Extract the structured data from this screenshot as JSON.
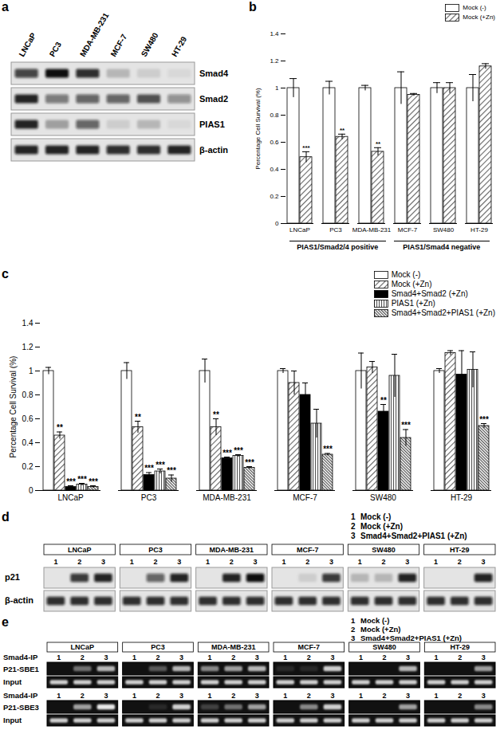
{
  "blot_a": {
    "panel": "a",
    "type": "western_blot",
    "lanes": [
      "LNCaP",
      "PC3",
      "MDA-MB-231",
      "MCF-7",
      "SW480",
      "HT-29"
    ],
    "rows": [
      {
        "label": "Smad4",
        "intensity": [
          0.75,
          1.0,
          0.85,
          0.2,
          0.1,
          0.05
        ]
      },
      {
        "label": "Smad2",
        "intensity": [
          0.9,
          0.5,
          0.6,
          0.6,
          0.7,
          0.4
        ]
      },
      {
        "label": "PIAS1",
        "intensity": [
          0.9,
          0.3,
          0.6,
          0.1,
          0.2,
          0.05
        ]
      },
      {
        "label": "β-actin",
        "intensity": [
          0.9,
          0.9,
          0.9,
          0.85,
          0.85,
          0.9
        ]
      }
    ]
  },
  "chart_data": [
    {
      "panel": "b",
      "type": "bar",
      "ylabel": "Percentage Cell Survival (%)",
      "categories": [
        "LNCaP",
        "PC3",
        "MDA-MB-231",
        "MCF-7",
        "SW480",
        "HT-29"
      ],
      "groups": [
        {
          "label": "PIAS1/Smad2/4 positive",
          "categories": [
            "LNCaP",
            "PC3",
            "MDA-MB-231"
          ]
        },
        {
          "label": "PIAS1/Smad4 negative",
          "categories": [
            "MCF-7",
            "SW480",
            "HT-29"
          ]
        }
      ],
      "ylim": [
        0,
        1.4
      ],
      "yticks": [
        0,
        0.2,
        0.4,
        0.6,
        0.8,
        1,
        1.2,
        1.4
      ],
      "grid": false,
      "legend": "top-right",
      "series": [
        {
          "name": "Mock (-)",
          "color": "#ffffff",
          "values": [
            1,
            1,
            1,
            1,
            1,
            1
          ],
          "errors": [
            0.07,
            0.05,
            0.02,
            0.12,
            0.04,
            0.1
          ],
          "significance": [
            null,
            null,
            null,
            null,
            null,
            null
          ]
        },
        {
          "name": "Mock (+Zn)",
          "color": "#555555",
          "values": [
            0.49,
            0.64,
            0.53,
            0.95,
            1.0,
            1.16
          ],
          "errors": [
            0.04,
            0.02,
            0.03,
            0.01,
            0.04,
            0.02
          ],
          "significance": [
            "***",
            "**",
            "**",
            null,
            null,
            null
          ]
        }
      ]
    },
    {
      "panel": "c",
      "type": "bar",
      "ylabel": "Percentage Cell Survival (%)",
      "categories": [
        "LNCaP",
        "PC3",
        "MDA-MB-231",
        "MCF-7",
        "SW480",
        "HT-29"
      ],
      "ylim": [
        0,
        1.4
      ],
      "yticks": [
        0,
        0.2,
        0.4,
        0.6,
        0.8,
        1,
        1.2,
        1.4
      ],
      "grid": false,
      "legend": "top-right",
      "series": [
        {
          "name": "Mock (-)",
          "color": "#ffffff",
          "values": [
            1,
            1,
            1,
            1,
            1,
            1
          ],
          "errors": [
            0.03,
            0.07,
            0.1,
            0.02,
            0.15,
            0.02
          ],
          "significance": [
            null,
            null,
            null,
            null,
            null,
            null
          ]
        },
        {
          "name": "Mock (+Zn)",
          "color": "#555555",
          "values": [
            0.46,
            0.53,
            0.53,
            0.9,
            1.03,
            1.15
          ],
          "errors": [
            0.03,
            0.05,
            0.07,
            0.1,
            0.05,
            0.02
          ],
          "significance": [
            "**",
            "**",
            "**",
            null,
            null,
            null
          ]
        },
        {
          "name": "Smad4+Smad2 (+Zn)",
          "color": "#000000",
          "values": [
            0.03,
            0.13,
            0.27,
            0.8,
            0.66,
            0.97
          ],
          "errors": [
            0.01,
            0.02,
            0.01,
            0.1,
            0.06,
            0.2
          ],
          "significance": [
            "***",
            "***",
            "***",
            null,
            "**",
            null
          ]
        },
        {
          "name": "PIAS1 (+Zn)",
          "color": "#444444",
          "values": [
            0.05,
            0.16,
            0.29,
            0.56,
            0.96,
            1.01
          ],
          "errors": [
            0.01,
            0.02,
            0.01,
            0.12,
            0.18,
            0.15
          ],
          "significance": [
            "***",
            "***",
            "***",
            null,
            null,
            null
          ]
        },
        {
          "name": "Smad4+Smad2+PIAS1 (+Zn)",
          "color": "#333333",
          "values": [
            0.03,
            0.1,
            0.19,
            0.3,
            0.44,
            0.54
          ],
          "errors": [
            0.01,
            0.03,
            0.01,
            0.01,
            0.07,
            0.02
          ],
          "significance": [
            "***",
            "***",
            "***",
            "***",
            "***",
            "***"
          ]
        }
      ]
    }
  ],
  "blot_d": {
    "panel": "d",
    "type": "western_blot",
    "lane_legend": [
      {
        "lane": 1,
        "label": "Mock (-)"
      },
      {
        "lane": 2,
        "label": "Mock (+Zn)"
      },
      {
        "lane": 3,
        "label": "Smad4+Smad2+PIAS1 (+Zn)"
      }
    ],
    "groups": [
      "LNCaP",
      "PC3",
      "MDA-MB-231",
      "MCF-7",
      "SW480",
      "HT-29"
    ],
    "rows": [
      {
        "label": "p21",
        "intensity": [
          [
            0,
            0.8,
            0.9
          ],
          [
            0,
            0.6,
            0.9
          ],
          [
            0,
            0.9,
            1.0
          ],
          [
            0,
            0.1,
            0.8
          ],
          [
            0.2,
            0.2,
            0.9
          ],
          [
            0,
            0,
            0.9
          ]
        ]
      },
      {
        "label": "β-actin",
        "intensity": [
          [
            0.85,
            0.85,
            0.85
          ],
          [
            0.85,
            0.85,
            0.85
          ],
          [
            0.85,
            0.85,
            0.85
          ],
          [
            0.85,
            0.85,
            0.85
          ],
          [
            0.85,
            0.85,
            0.85
          ],
          [
            0.85,
            0.85,
            0.85
          ]
        ]
      }
    ]
  },
  "gel_e": {
    "panel": "e",
    "type": "gel",
    "lane_legend": [
      {
        "lane": 1,
        "label": "Mock (-)"
      },
      {
        "lane": 2,
        "label": "Mock (+Zn)"
      },
      {
        "lane": 3,
        "label": "Smad4+Smad2+PIAS1 (+Zn)"
      }
    ],
    "groups": [
      "LNCaP",
      "PC3",
      "MDA-MB-231",
      "MCF-7",
      "SW480",
      "HT-29"
    ],
    "blocks": [
      {
        "ip_label": "Smad4-IP",
        "rows": [
          {
            "label": "P21-SBE1",
            "intensity": [
              [
                0,
                0.4,
                0.7
              ],
              [
                0,
                0.3,
                0.7
              ],
              [
                0.5,
                0.6,
                0.7
              ],
              [
                0.1,
                0.1,
                0.8
              ],
              [
                0,
                0,
                0.7
              ],
              [
                0,
                0,
                0.6
              ]
            ]
          },
          {
            "label": "Input",
            "intensity": [
              [
                0.8,
                0.8,
                0.8
              ],
              [
                0.8,
                0.8,
                0.8
              ],
              [
                0.8,
                0.8,
                0.8
              ],
              [
                0.8,
                0.8,
                0.8
              ],
              [
                0.8,
                0.8,
                0.8
              ],
              [
                0.8,
                0.8,
                0.8
              ]
            ]
          }
        ]
      },
      {
        "ip_label": "Smad4-IP",
        "rows": [
          {
            "label": "P21-SBE3",
            "intensity": [
              [
                0,
                0.6,
                0.9
              ],
              [
                0,
                0.1,
                0.8
              ],
              [
                0.2,
                0.4,
                0.6
              ],
              [
                0,
                0.5,
                0.8
              ],
              [
                0,
                0,
                0.6
              ],
              [
                0,
                0,
                0.5
              ]
            ]
          },
          {
            "label": "Input",
            "intensity": [
              [
                0.8,
                0.8,
                0.8
              ],
              [
                0.8,
                0.8,
                0.8
              ],
              [
                0.8,
                0.8,
                0.8
              ],
              [
                0.8,
                0.8,
                0.8
              ],
              [
                0.8,
                0.8,
                0.8
              ],
              [
                0.8,
                0.8,
                0.8
              ]
            ]
          }
        ]
      }
    ]
  }
}
